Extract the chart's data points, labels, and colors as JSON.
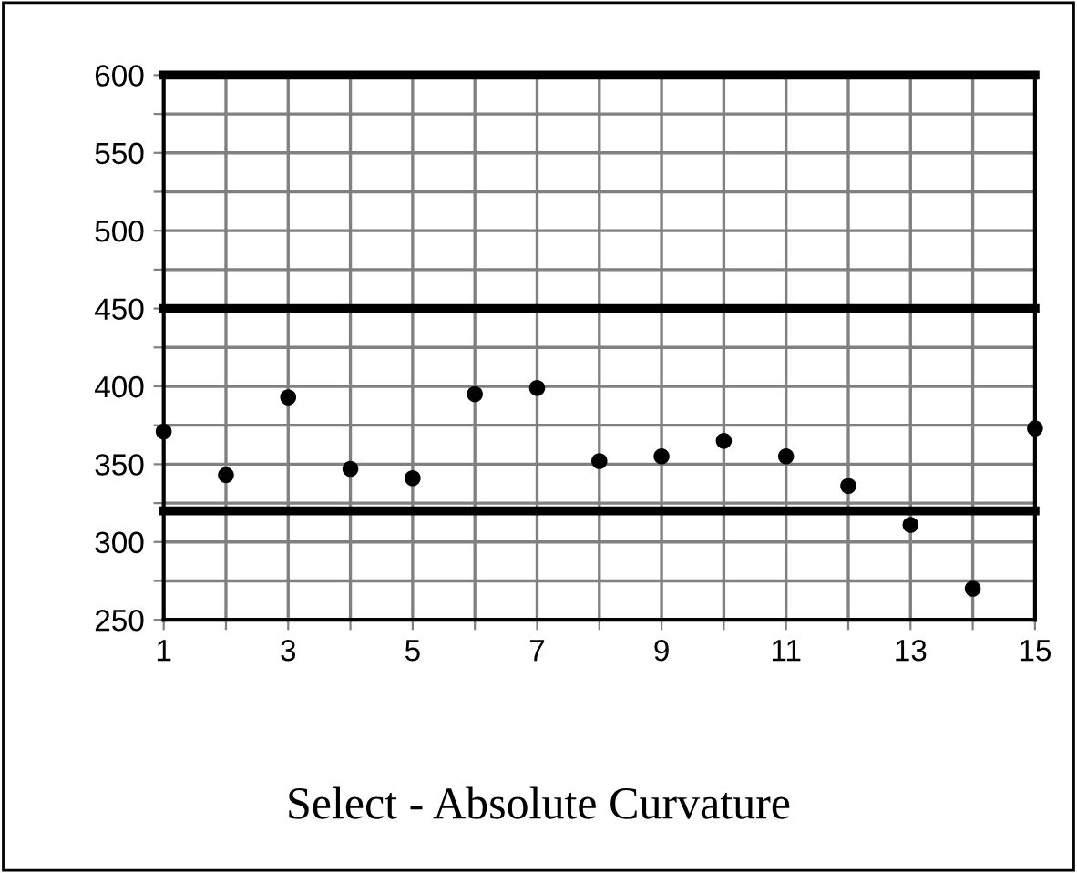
{
  "chart_data": {
    "type": "scatter",
    "title": "Select - Absolute Curvature",
    "x": [
      1,
      2,
      3,
      4,
      5,
      6,
      7,
      8,
      9,
      10,
      11,
      12,
      13,
      14,
      15
    ],
    "series": [
      {
        "color": "#000000",
        "values": [
          371,
          343,
          393,
          347,
          341,
          395,
          399,
          352,
          355,
          365,
          355,
          336,
          311,
          270,
          373
        ]
      }
    ],
    "xlim": [
      1,
      15
    ],
    "xticks": [
      1,
      {
        "value": 2,
        "label": null
      },
      3,
      {
        "value": 4,
        "label": null
      },
      5,
      {
        "value": 6,
        "label": null
      },
      7,
      {
        "value": 8,
        "label": null
      },
      9,
      {
        "value": 10,
        "label": null
      },
      11,
      {
        "value": 12,
        "label": null
      },
      13,
      {
        "value": 14,
        "label": null
      },
      15
    ],
    "ylim": [
      250,
      600
    ],
    "yticks": [
      250,
      {
        "value": 275,
        "label": null
      },
      300,
      {
        "value": 325,
        "label": null
      },
      350,
      {
        "value": 375,
        "label": null
      },
      400,
      {
        "value": 425,
        "label": null
      },
      450,
      {
        "value": 475,
        "label": null
      },
      500,
      {
        "value": 525,
        "label": null
      },
      550,
      {
        "value": 575,
        "label": null
      },
      600
    ],
    "ref_lines": [
      {
        "axis": "y",
        "value": 600,
        "color": "#000000"
      },
      {
        "axis": "y",
        "value": 450,
        "color": "#000000"
      },
      {
        "axis": "y",
        "value": 320,
        "color": "#000000"
      }
    ],
    "grid": true,
    "marker": "circle"
  }
}
